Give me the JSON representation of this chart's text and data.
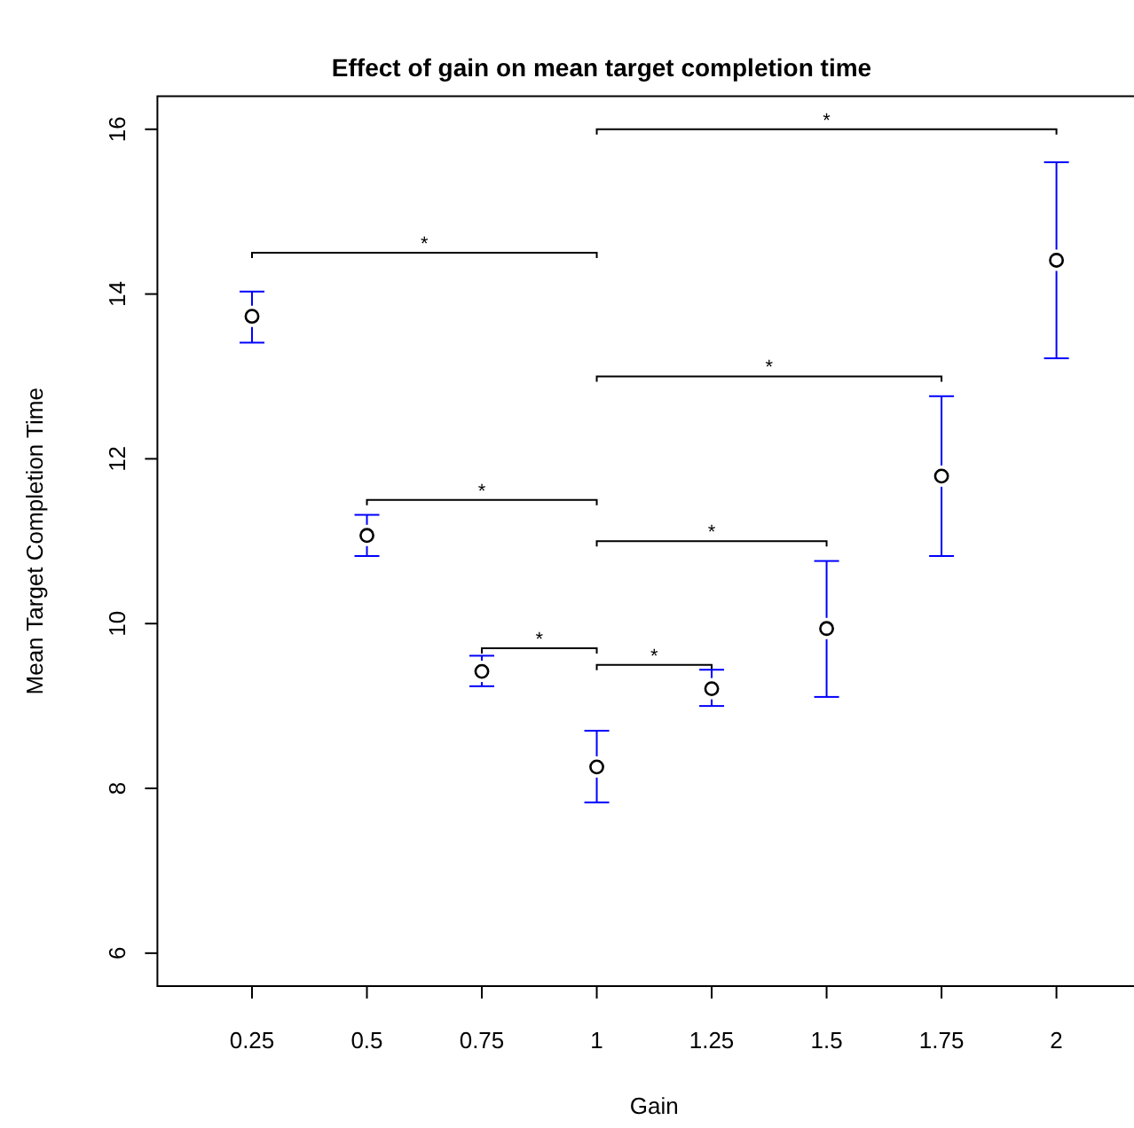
{
  "chart_data": {
    "type": "scatter",
    "title": "Effect of gain on mean target completion time",
    "xlabel": "Gain",
    "ylabel": "Mean Target Completion Time",
    "categories": [
      "0.25",
      "0.5",
      "0.75",
      "1",
      "1.25",
      "1.5",
      "1.75",
      "2"
    ],
    "series": [
      {
        "color": "#000000",
        "values": [
          13.73,
          11.07,
          9.42,
          8.26,
          9.21,
          9.94,
          11.79,
          14.41
        ],
        "errors": [
          [
            13.41,
            14.03
          ],
          [
            10.82,
            11.32
          ],
          [
            9.24,
            9.61
          ],
          [
            7.83,
            8.7
          ],
          [
            9.0,
            9.44
          ],
          [
            9.11,
            10.76
          ],
          [
            10.82,
            12.76
          ],
          [
            13.22,
            15.6
          ]
        ]
      }
    ],
    "ylim": [
      5.6,
      16.4
    ],
    "yticks": [
      6,
      8,
      10,
      12,
      14,
      16
    ],
    "marker": "circle",
    "grid": false,
    "annotations": [
      "*",
      "*",
      "*",
      "*",
      "*",
      "*",
      "*"
    ]
  }
}
